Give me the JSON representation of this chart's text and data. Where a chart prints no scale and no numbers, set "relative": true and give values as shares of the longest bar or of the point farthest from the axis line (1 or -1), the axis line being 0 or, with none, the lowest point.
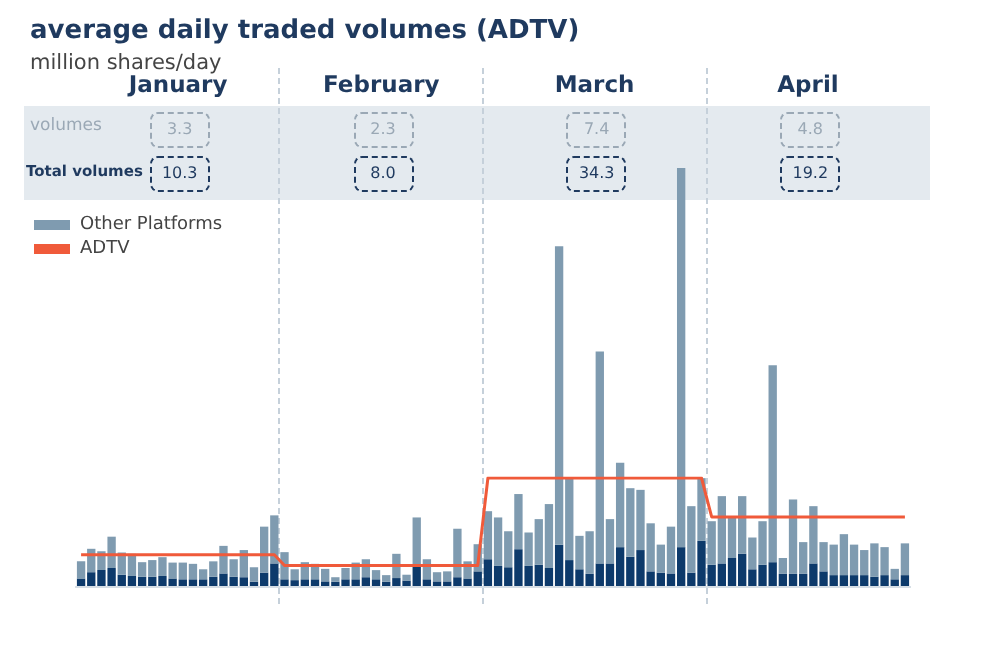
{
  "chart_data": [
    {
      "type": "bar",
      "title": "average daily traded volumes (ADTV)",
      "subtitle": "million shares/day",
      "relative": true,
      "stacked": true,
      "legend": "top left",
      "categories": [
        null,
        null,
        null,
        null,
        null,
        null,
        null,
        null,
        null,
        null,
        null,
        null,
        null,
        null,
        null,
        null,
        null,
        null,
        null,
        null,
        null,
        null,
        null,
        null,
        null,
        null,
        null,
        null,
        null,
        null,
        null,
        null,
        null,
        null,
        null,
        null,
        null,
        null,
        null,
        null,
        null,
        null,
        null,
        null,
        null,
        null,
        null,
        null,
        null,
        null,
        null,
        null,
        null,
        null,
        null,
        null,
        null,
        null,
        null,
        null,
        null,
        null,
        null,
        null,
        null,
        null,
        null,
        null,
        null,
        null,
        null,
        null,
        null,
        null,
        null,
        null,
        null,
        null,
        null,
        null,
        null,
        null
      ],
      "annotations": [
        "January",
        "February",
        "March",
        "April",
        "volumes",
        "Total volumes",
        "3.3",
        "2.3",
        "7.4",
        "4.8",
        "10.3",
        "8.0",
        "34.3",
        "19.2"
      ],
      "series": [
        {
          "color": "#0d3a6b",
          "values": [
            0.018,
            0.033,
            0.038,
            0.043,
            0.027,
            0.024,
            0.022,
            0.022,
            0.024,
            0.018,
            0.016,
            0.016,
            0.016,
            0.022,
            0.03,
            0.022,
            0.021,
            0.01,
            0.032,
            0.054,
            0.016,
            0.014,
            0.016,
            0.016,
            0.011,
            0.01,
            0.016,
            0.016,
            0.021,
            0.016,
            0.01,
            0.019,
            0.013,
            0.049,
            0.016,
            0.011,
            0.011,
            0.021,
            0.018,
            0.035,
            0.064,
            0.048,
            0.045,
            0.088,
            0.048,
            0.051,
            0.043,
            0.099,
            0.062,
            0.04,
            0.029,
            0.054,
            0.054,
            0.093,
            0.07,
            0.086,
            0.035,
            0.032,
            0.03,
            0.093,
            0.032,
            0.108,
            0.051,
            0.054,
            0.067,
            0.077,
            0.04,
            0.051,
            0.057,
            0.029,
            0.029,
            0.029,
            0.054,
            0.035,
            0.026,
            0.026,
            0.026,
            0.026,
            0.022,
            0.026,
            0.016,
            0.026
          ]
        },
        {
          "name": "Other Platforms",
          "color": "#7f9bb0",
          "values": [
            0.041,
            0.056,
            0.045,
            0.075,
            0.053,
            0.053,
            0.035,
            0.04,
            0.045,
            0.038,
            0.04,
            0.037,
            0.024,
            0.037,
            0.066,
            0.042,
            0.065,
            0.035,
            0.11,
            0.115,
            0.065,
            0.026,
            0.041,
            0.037,
            0.03,
            0.011,
            0.027,
            0.04,
            0.043,
            0.022,
            0.016,
            0.058,
            0.014,
            0.115,
            0.048,
            0.022,
            0.024,
            0.116,
            0.041,
            0.065,
            0.115,
            0.116,
            0.086,
            0.132,
            0.08,
            0.109,
            0.153,
            0.714,
            0.196,
            0.08,
            0.102,
            0.507,
            0.106,
            0.202,
            0.164,
            0.144,
            0.115,
            0.067,
            0.112,
            0.907,
            0.159,
            0.15,
            0.104,
            0.161,
            0.1,
            0.138,
            0.076,
            0.104,
            0.471,
            0.038,
            0.178,
            0.076,
            0.137,
            0.07,
            0.073,
            0.098,
            0.073,
            0.06,
            0.08,
            0.067,
            0.025,
            0.076
          ]
        }
      ]
    },
    {
      "type": "line",
      "relative": true,
      "legend": "top left",
      "categories": [
        null,
        null,
        null,
        null,
        null,
        null,
        null,
        null,
        null,
        null,
        null,
        null,
        null,
        null,
        null,
        null,
        null,
        null,
        null,
        null,
        null,
        null,
        null,
        null,
        null,
        null,
        null,
        null,
        null,
        null,
        null,
        null,
        null,
        null,
        null,
        null,
        null,
        null,
        null,
        null,
        null,
        null,
        null,
        null,
        null,
        null,
        null,
        null,
        null,
        null,
        null,
        null,
        null,
        null,
        null,
        null,
        null,
        null,
        null,
        null,
        null,
        null,
        null,
        null,
        null,
        null,
        null,
        null,
        null,
        null,
        null,
        null,
        null,
        null,
        null,
        null,
        null,
        null,
        null,
        null,
        null,
        null
      ],
      "series": [
        {
          "name": "ADTV",
          "color": "#f05a3a",
          "values": [
            0.29,
            0.29,
            0.29,
            0.29,
            0.29,
            0.29,
            0.29,
            0.29,
            0.29,
            0.29,
            0.29,
            0.29,
            0.29,
            0.29,
            0.29,
            0.29,
            0.29,
            0.29,
            0.29,
            0.29,
            0.19,
            0.19,
            0.19,
            0.19,
            0.19,
            0.19,
            0.19,
            0.19,
            0.19,
            0.19,
            0.19,
            0.19,
            0.19,
            0.19,
            0.19,
            0.19,
            0.19,
            0.19,
            0.19,
            0.19,
            1,
            1,
            1,
            1,
            1,
            1,
            1,
            1,
            1,
            1,
            1,
            1,
            1,
            1,
            1,
            1,
            1,
            1,
            1,
            1,
            1,
            1,
            0.64,
            0.64,
            0.64,
            0.64,
            0.64,
            0.64,
            0.64,
            0.64,
            0.64,
            0.64,
            0.64,
            0.64,
            0.64,
            0.64,
            0.64,
            0.64,
            0.64,
            0.64,
            0.64,
            0.64
          ]
        }
      ]
    }
  ]
}
